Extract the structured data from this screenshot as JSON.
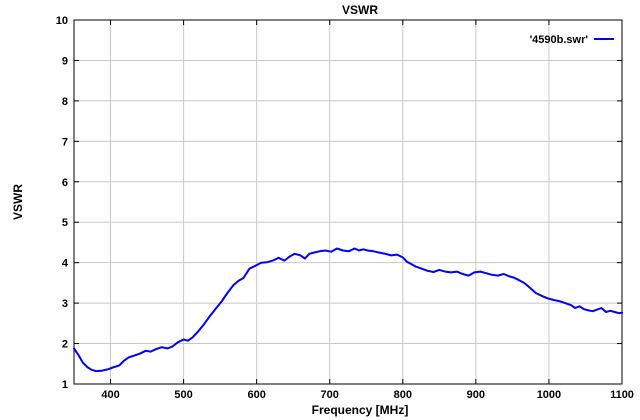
{
  "chart_data": {
    "type": "line",
    "title": "VSWR",
    "xlabel": "Frequency [MHz]",
    "ylabel": "VSWR",
    "xlim": [
      350,
      1100
    ],
    "ylim": [
      1,
      10
    ],
    "x_ticks": [
      "400",
      "500",
      "600",
      "700",
      "800",
      "900",
      "1000",
      "1100"
    ],
    "y_ticks": [
      "1",
      "2",
      "3",
      "4",
      "5",
      "6",
      "7",
      "8",
      "9",
      "10"
    ],
    "grid": true,
    "legend_position": "top-right",
    "series": [
      {
        "name": "'4590b.swr'",
        "color": "#0000ff",
        "x": [
          350,
          356,
          362,
          368,
          374,
          380,
          388,
          396,
          405,
          412,
          418,
          425,
          432,
          440,
          448,
          455,
          462,
          470,
          478,
          485,
          492,
          500,
          506,
          512,
          520,
          528,
          536,
          544,
          552,
          560,
          568,
          575,
          582,
          590,
          598,
          606,
          614,
          622,
          630,
          638,
          645,
          652,
          660,
          666,
          672,
          678,
          686,
          694,
          702,
          710,
          718,
          726,
          734,
          740,
          746,
          752,
          760,
          768,
          776,
          784,
          792,
          800,
          806,
          812,
          818,
          826,
          834,
          842,
          850,
          858,
          866,
          874,
          882,
          890,
          898,
          906,
          914,
          922,
          930,
          938,
          946,
          952,
          958,
          966,
          974,
          982,
          990,
          998,
          1006,
          1014,
          1022,
          1030,
          1036,
          1042,
          1048,
          1054,
          1060,
          1066,
          1072,
          1078,
          1084,
          1090,
          1096,
          1100
        ],
        "y": [
          1.88,
          1.72,
          1.53,
          1.42,
          1.35,
          1.32,
          1.33,
          1.36,
          1.42,
          1.46,
          1.57,
          1.66,
          1.7,
          1.75,
          1.82,
          1.8,
          1.86,
          1.91,
          1.88,
          1.93,
          2.03,
          2.1,
          2.07,
          2.15,
          2.3,
          2.48,
          2.68,
          2.86,
          3.04,
          3.25,
          3.44,
          3.55,
          3.62,
          3.85,
          3.92,
          4.0,
          4.01,
          4.05,
          4.12,
          4.05,
          4.15,
          4.22,
          4.18,
          4.1,
          4.22,
          4.25,
          4.28,
          4.3,
          4.27,
          4.35,
          4.3,
          4.28,
          4.35,
          4.3,
          4.33,
          4.3,
          4.28,
          4.25,
          4.22,
          4.18,
          4.2,
          4.13,
          4.02,
          3.96,
          3.9,
          3.85,
          3.8,
          3.77,
          3.82,
          3.78,
          3.76,
          3.78,
          3.72,
          3.68,
          3.76,
          3.78,
          3.74,
          3.7,
          3.68,
          3.72,
          3.66,
          3.63,
          3.58,
          3.5,
          3.38,
          3.25,
          3.18,
          3.12,
          3.08,
          3.05,
          3.0,
          2.95,
          2.88,
          2.92,
          2.85,
          2.82,
          2.8,
          2.84,
          2.88,
          2.78,
          2.81,
          2.78,
          2.75,
          2.76
        ]
      }
    ]
  }
}
